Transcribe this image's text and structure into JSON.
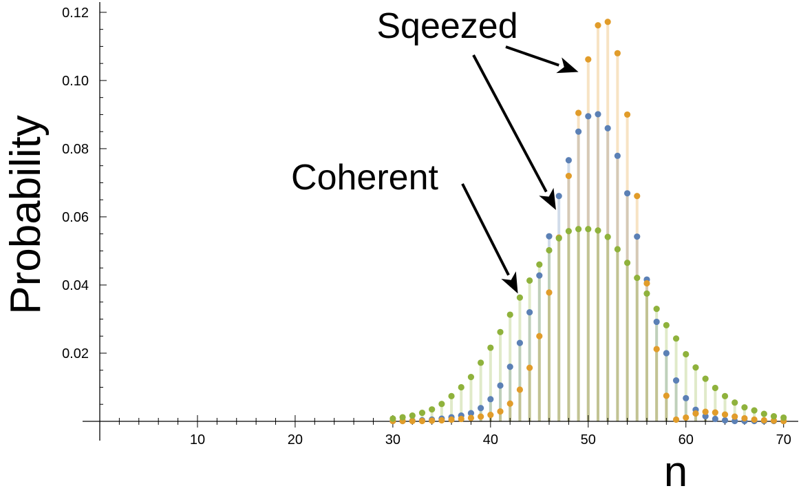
{
  "chart_data": {
    "type": "scatter",
    "style": "discrete-plot-with-fill-stems",
    "xlabel": "n",
    "ylabel": "Probability",
    "xlim": [
      0,
      71.5
    ],
    "ylim": [
      -0.004,
      0.122
    ],
    "x_ticks": [
      10,
      20,
      30,
      40,
      50,
      60,
      70
    ],
    "y_ticks": [
      0.02,
      0.04,
      0.06,
      0.08,
      0.1,
      0.12
    ],
    "y_tick_labels": [
      "0.02",
      "0.04",
      "0.06",
      "0.08",
      "0.10",
      "0.12"
    ],
    "grid": false,
    "legend": "none",
    "series": [
      {
        "color": "#5b80b5",
        "x": [
          30,
          31,
          32,
          33,
          34,
          35,
          36,
          37,
          38,
          39,
          40,
          41,
          42,
          43,
          44,
          45,
          46,
          47,
          48,
          49,
          50,
          51,
          52,
          53,
          54,
          55,
          56,
          57,
          58,
          59,
          60,
          61,
          62,
          63,
          64,
          65,
          66,
          67,
          68,
          69,
          70
        ],
        "values": [
          0.0001,
          0.0001,
          0.0002,
          0.0003,
          0.0005,
          0.0008,
          0.0012,
          0.0017,
          0.0024,
          0.0039,
          0.0065,
          0.0105,
          0.016,
          0.023,
          0.032,
          0.0428,
          0.0543,
          0.0661,
          0.0766,
          0.085,
          0.0895,
          0.0901,
          0.086,
          0.0779,
          0.0669,
          0.0542,
          0.0416,
          0.0292,
          0.02,
          0.012,
          0.0068,
          0.0034,
          0.0015,
          0.0007,
          0.0003,
          0.0001,
          0.0001,
          0.0001,
          0.0001,
          0.0001,
          0.0001
        ]
      },
      {
        "color": "#e19c2a",
        "x": [
          30,
          31,
          32,
          33,
          34,
          35,
          36,
          37,
          38,
          39,
          40,
          41,
          42,
          43,
          44,
          45,
          46,
          47,
          48,
          49,
          50,
          51,
          52,
          53,
          54,
          55,
          56,
          57,
          58,
          59,
          60,
          61,
          62,
          63,
          64,
          65,
          66,
          67,
          68,
          69,
          70
        ],
        "values": [
          0.0001,
          0.0001,
          0.0001,
          0.0001,
          0.0002,
          0.0003,
          0.0005,
          0.0007,
          0.001,
          0.0014,
          0.0019,
          0.0029,
          0.0052,
          0.0093,
          0.0157,
          0.025,
          0.0378,
          0.0539,
          0.072,
          0.0905,
          0.1062,
          0.1162,
          0.1172,
          0.108,
          0.09,
          0.0661,
          0.0405,
          0.0212,
          0.0075,
          0.0005,
          0.0011,
          0.0023,
          0.0028,
          0.0026,
          0.002,
          0.0014,
          0.0009,
          0.0005,
          0.0003,
          0.0002,
          0.0001
        ]
      },
      {
        "color": "#8fb23c",
        "x": [
          30,
          31,
          32,
          33,
          34,
          35,
          36,
          37,
          38,
          39,
          40,
          41,
          42,
          43,
          44,
          45,
          46,
          47,
          48,
          49,
          50,
          51,
          52,
          53,
          54,
          55,
          56,
          57,
          58,
          59,
          60,
          61,
          62,
          63,
          64,
          65,
          66,
          67,
          68,
          69,
          70
        ],
        "values": [
          0.0008,
          0.0012,
          0.0017,
          0.0025,
          0.0035,
          0.0051,
          0.0074,
          0.01,
          0.013,
          0.0172,
          0.0216,
          0.0262,
          0.0313,
          0.0363,
          0.0413,
          0.046,
          0.0502,
          0.0537,
          0.0558,
          0.0564,
          0.0564,
          0.056,
          0.0541,
          0.0505,
          0.0465,
          0.0421,
          0.0375,
          0.033,
          0.0282,
          0.0243,
          0.0197,
          0.0158,
          0.0125,
          0.0098,
          0.0074,
          0.0055,
          0.0041,
          0.0032,
          0.0022,
          0.0015,
          0.0011
        ]
      }
    ],
    "annotations": [
      {
        "text": "Sqeezed",
        "points_to": {
          "x": 49,
          "y": 0.1025
        }
      },
      {
        "text": "Sqeezed",
        "points_to": {
          "x": 46.7,
          "y": 0.062
        }
      },
      {
        "text": "Coherent",
        "points_to": {
          "x": 42.8,
          "y": 0.0375
        }
      }
    ]
  }
}
